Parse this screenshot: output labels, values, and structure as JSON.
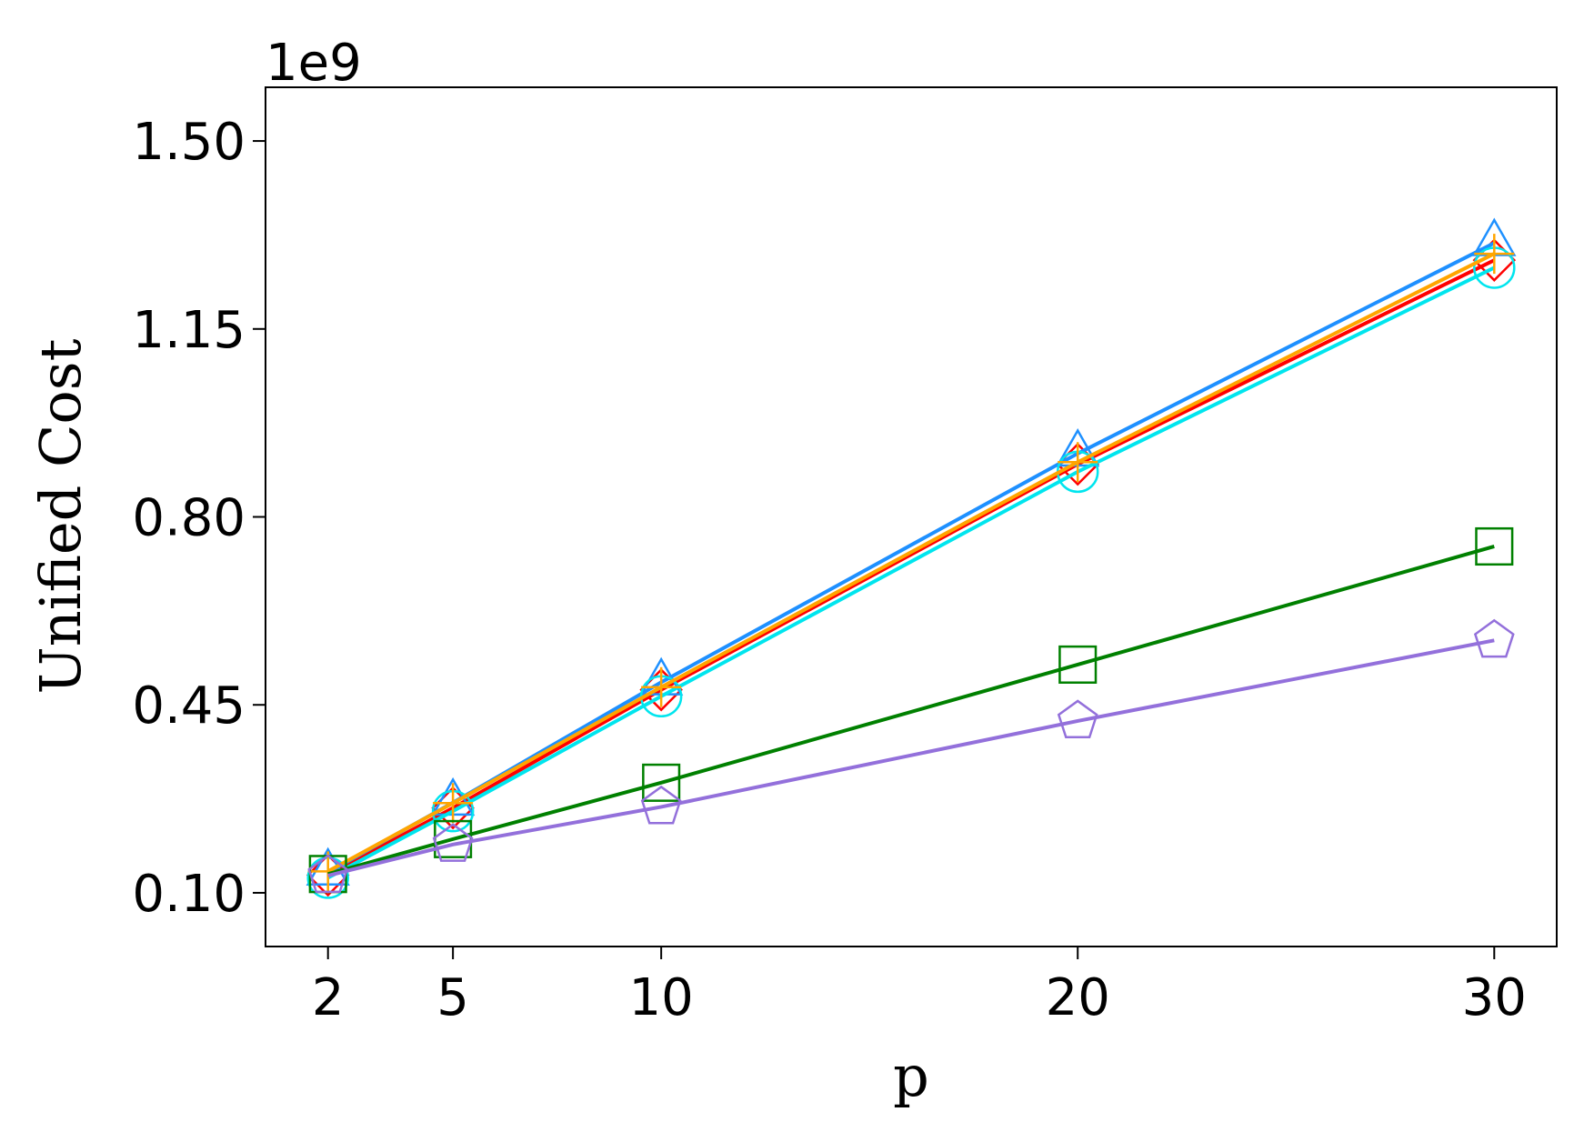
{
  "chart_data": {
    "type": "line",
    "title": "",
    "xlabel": "p",
    "ylabel": "Unified Cost",
    "y_offset_label": "1e9",
    "x_ticks": [
      2,
      5,
      10,
      20,
      30
    ],
    "x_tick_labels": [
      "2",
      "5",
      "10",
      "20",
      "30"
    ],
    "y_ticks": [
      0.1,
      0.45,
      0.8,
      1.15,
      1.5
    ],
    "y_tick_labels": [
      "0.10",
      "0.45",
      "0.80",
      "1.15",
      "1.50"
    ],
    "xlim": [
      0.5,
      31.5
    ],
    "ylim": [
      0.0,
      1.6
    ],
    "grid": false,
    "x": [
      2,
      5,
      10,
      20,
      30
    ],
    "series": [
      {
        "color": "#ff0000",
        "marker": "diamond",
        "values": [
          0.133,
          0.258,
          0.478,
          0.898,
          1.278
        ]
      },
      {
        "color": "#1e90ff",
        "marker": "triangle",
        "values": [
          0.138,
          0.268,
          0.492,
          0.918,
          1.31
        ]
      },
      {
        "color": "#00e5ee",
        "marker": "circle",
        "values": [
          0.128,
          0.252,
          0.466,
          0.884,
          1.264
        ]
      },
      {
        "color": "#ffa500",
        "marker": "plus",
        "values": [
          0.14,
          0.267,
          0.483,
          0.902,
          1.29
        ]
      },
      {
        "color": "#008000",
        "marker": "square",
        "values": [
          0.135,
          0.2,
          0.305,
          0.525,
          0.745
        ]
      },
      {
        "color": "#9370db",
        "marker": "pentagon",
        "values": [
          0.132,
          0.19,
          0.26,
          0.42,
          0.57
        ]
      }
    ]
  }
}
